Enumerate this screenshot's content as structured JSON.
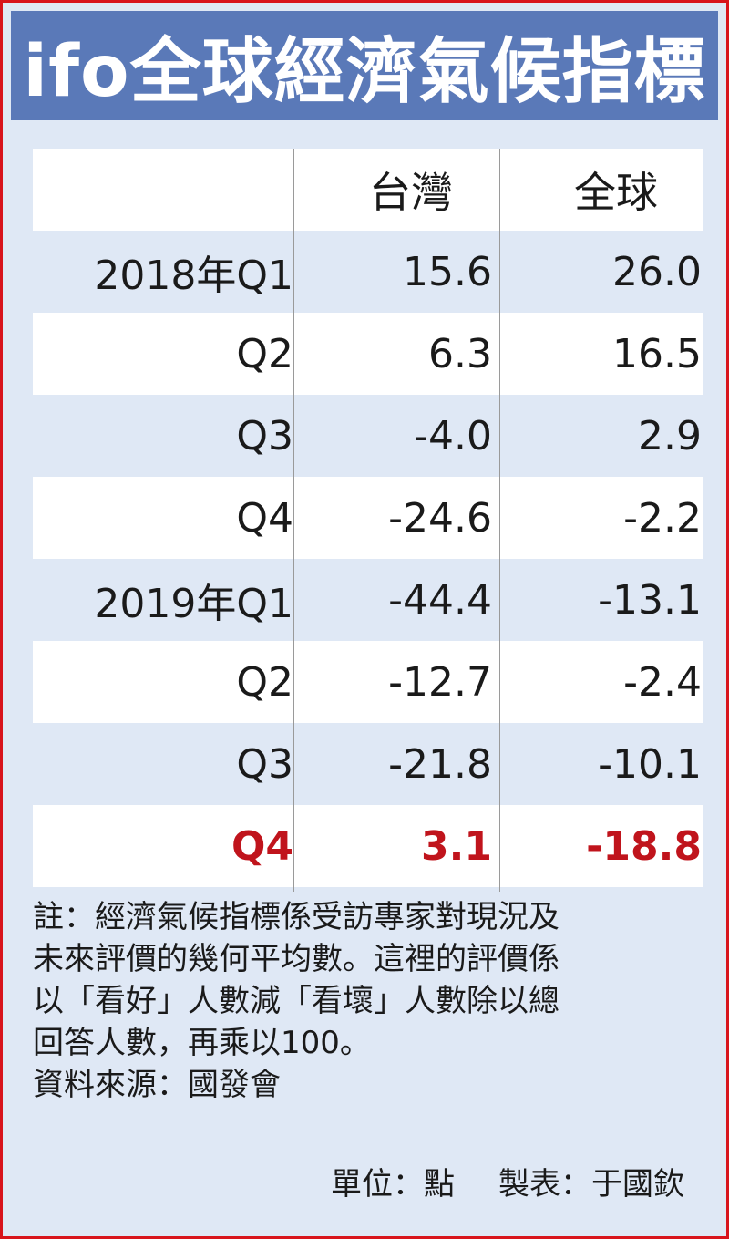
{
  "title": "ifo全球經濟氣候指標",
  "chart_data": {
    "type": "table",
    "columns": [
      "",
      "台灣",
      "全球"
    ],
    "rows": [
      {
        "label": "2018年Q1",
        "taiwan": "15.6",
        "global": "26.0"
      },
      {
        "label": "Q2",
        "taiwan": "6.3",
        "global": "16.5"
      },
      {
        "label": "Q3",
        "taiwan": "-4.0",
        "global": "2.9"
      },
      {
        "label": "Q4",
        "taiwan": "-24.6",
        "global": "-2.2"
      },
      {
        "label": "2019年Q1",
        "taiwan": "-44.4",
        "global": "-13.1"
      },
      {
        "label": "Q2",
        "taiwan": "-12.7",
        "global": "-2.4"
      },
      {
        "label": "Q3",
        "taiwan": "-21.8",
        "global": "-10.1"
      },
      {
        "label": "Q4",
        "taiwan": "3.1",
        "global": "-18.8"
      }
    ],
    "highlight_row": 7,
    "highlight_color": "#c0141c"
  },
  "notes": [
    "註：經濟氣候指標係受訪專家對現況及",
    "未來評價的幾何平均數。這裡的評價係",
    "以「看好」人數減「看壞」人數除以總",
    "回答人數，再乘以100。",
    "資料來源：國發會"
  ],
  "credit": {
    "unit": "單位：點",
    "maker": "製表：于國欽"
  },
  "colors": {
    "frame": "#d8141c",
    "title_bg": "#5a79b8",
    "panel_bg": "#dfe8f5",
    "stripe": "#ffffff"
  }
}
